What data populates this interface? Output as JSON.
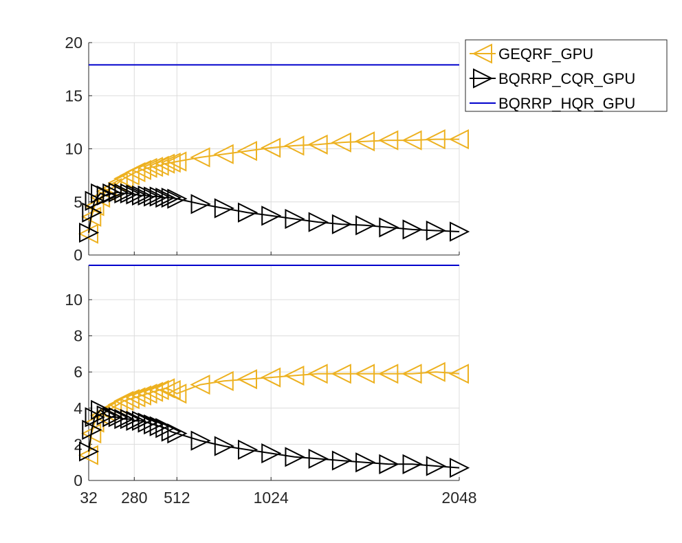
{
  "legend": {
    "placement": "outside-top-right",
    "entries": [
      {
        "label": "GEQRF_GPU",
        "color": "#EDB120",
        "marker": "triangle-left"
      },
      {
        "label": "BQRRP_CQR_GPU",
        "color": "#000000",
        "marker": "triangle-right"
      },
      {
        "label": "BQRRP_HQR_GPU",
        "color": "#0000CC",
        "marker": "none"
      }
    ]
  },
  "chart_data": [
    {
      "type": "line",
      "grid": true,
      "x_ticks": [
        32,
        280,
        512,
        1024,
        2048
      ],
      "x_tick_labels": [
        "",
        "",
        "",
        "",
        ""
      ],
      "xlim": [
        32,
        2048
      ],
      "ylim": [
        0,
        20
      ],
      "y_ticks": [
        0,
        5,
        10,
        15,
        20
      ],
      "y_tick_labels": [
        "0",
        "5",
        "10",
        "15",
        "20"
      ],
      "series": [
        {
          "name": "GEQRF_GPU",
          "color": "#EDB120",
          "marker": "triangle-left",
          "points": [
            [
              32,
              2.0
            ],
            [
              48,
              3.6
            ],
            [
              64,
              4.6
            ],
            [
              96,
              5.4
            ],
            [
              128,
              6.0
            ],
            [
              160,
              6.3
            ],
            [
              192,
              6.8
            ],
            [
              224,
              7.2
            ],
            [
              256,
              7.5
            ],
            [
              288,
              7.8
            ],
            [
              320,
              8.0
            ],
            [
              352,
              8.2
            ],
            [
              384,
              8.3
            ],
            [
              416,
              8.4
            ],
            [
              448,
              8.6
            ],
            [
              480,
              8.7
            ],
            [
              512,
              8.8
            ],
            [
              640,
              9.2
            ],
            [
              768,
              9.5
            ],
            [
              896,
              9.8
            ],
            [
              1024,
              10.1
            ],
            [
              1152,
              10.3
            ],
            [
              1280,
              10.4
            ],
            [
              1408,
              10.6
            ],
            [
              1536,
              10.7
            ],
            [
              1664,
              10.8
            ],
            [
              1792,
              10.8
            ],
            [
              1920,
              10.9
            ],
            [
              2048,
              10.9
            ]
          ]
        },
        {
          "name": "BQRRP_CQR_GPU",
          "color": "#000000",
          "marker": "triangle-right",
          "points": [
            [
              32,
              2.1
            ],
            [
              48,
              4.0
            ],
            [
              64,
              5.1
            ],
            [
              96,
              5.8
            ],
            [
              128,
              5.6
            ],
            [
              160,
              5.8
            ],
            [
              192,
              5.9
            ],
            [
              224,
              5.8
            ],
            [
              256,
              5.8
            ],
            [
              288,
              5.7
            ],
            [
              320,
              5.6
            ],
            [
              352,
              5.6
            ],
            [
              384,
              5.5
            ],
            [
              416,
              5.5
            ],
            [
              448,
              5.4
            ],
            [
              480,
              5.4
            ],
            [
              512,
              5.3
            ],
            [
              640,
              4.8
            ],
            [
              768,
              4.4
            ],
            [
              896,
              4.0
            ],
            [
              1024,
              3.7
            ],
            [
              1152,
              3.4
            ],
            [
              1280,
              3.1
            ],
            [
              1408,
              2.9
            ],
            [
              1536,
              2.8
            ],
            [
              1664,
              2.6
            ],
            [
              1792,
              2.4
            ],
            [
              1920,
              2.3
            ],
            [
              2048,
              2.2
            ]
          ]
        },
        {
          "name": "BQRRP_HQR_GPU",
          "color": "#0000CC",
          "marker": "none",
          "points": [
            [
              32,
              17.9
            ],
            [
              2048,
              17.9
            ]
          ]
        }
      ]
    },
    {
      "type": "line",
      "grid": true,
      "x_ticks": [
        32,
        280,
        512,
        1024,
        2048
      ],
      "x_tick_labels": [
        "32",
        "280",
        "512",
        "1024",
        "2048"
      ],
      "xlim": [
        32,
        2048
      ],
      "ylim": [
        0,
        11.9
      ],
      "y_ticks": [
        0,
        2,
        4,
        6,
        8,
        10
      ],
      "y_tick_labels": [
        "0",
        "2",
        "4",
        "6",
        "8",
        "10"
      ],
      "series": [
        {
          "name": "GEQRF_GPU",
          "color": "#EDB120",
          "marker": "triangle-left",
          "points": [
            [
              32,
              1.4
            ],
            [
              48,
              2.6
            ],
            [
              64,
              3.2
            ],
            [
              96,
              3.6
            ],
            [
              128,
              3.8
            ],
            [
              160,
              4.0
            ],
            [
              192,
              4.2
            ],
            [
              224,
              4.4
            ],
            [
              256,
              4.5
            ],
            [
              288,
              4.6
            ],
            [
              320,
              4.7
            ],
            [
              352,
              4.8
            ],
            [
              384,
              4.9
            ],
            [
              416,
              5.0
            ],
            [
              448,
              5.1
            ],
            [
              480,
              5.0
            ],
            [
              512,
              4.8
            ],
            [
              640,
              5.3
            ],
            [
              768,
              5.5
            ],
            [
              896,
              5.6
            ],
            [
              1024,
              5.7
            ],
            [
              1152,
              5.8
            ],
            [
              1280,
              5.9
            ],
            [
              1408,
              5.9
            ],
            [
              1536,
              5.9
            ],
            [
              1664,
              5.9
            ],
            [
              1792,
              5.9
            ],
            [
              1920,
              6.0
            ],
            [
              2048,
              5.9
            ]
          ]
        },
        {
          "name": "BQRRP_CQR_GPU",
          "color": "#000000",
          "marker": "triangle-right",
          "points": [
            [
              32,
              1.6
            ],
            [
              48,
              2.8
            ],
            [
              64,
              3.5
            ],
            [
              96,
              3.9
            ],
            [
              128,
              3.6
            ],
            [
              160,
              3.5
            ],
            [
              192,
              3.5
            ],
            [
              224,
              3.4
            ],
            [
              256,
              3.4
            ],
            [
              288,
              3.3
            ],
            [
              320,
              3.3
            ],
            [
              352,
              3.2
            ],
            [
              384,
              3.1
            ],
            [
              416,
              3.0
            ],
            [
              448,
              2.9
            ],
            [
              480,
              2.7
            ],
            [
              512,
              2.6
            ],
            [
              640,
              2.2
            ],
            [
              768,
              1.9
            ],
            [
              896,
              1.7
            ],
            [
              1024,
              1.5
            ],
            [
              1152,
              1.3
            ],
            [
              1280,
              1.2
            ],
            [
              1408,
              1.1
            ],
            [
              1536,
              1.0
            ],
            [
              1664,
              0.9
            ],
            [
              1792,
              0.9
            ],
            [
              1920,
              0.8
            ],
            [
              2048,
              0.7
            ]
          ]
        },
        {
          "name": "BQRRP_HQR_GPU",
          "color": "#0000CC",
          "marker": "none",
          "points": [
            [
              32,
              11.9
            ],
            [
              2048,
              11.9
            ]
          ]
        }
      ]
    }
  ]
}
